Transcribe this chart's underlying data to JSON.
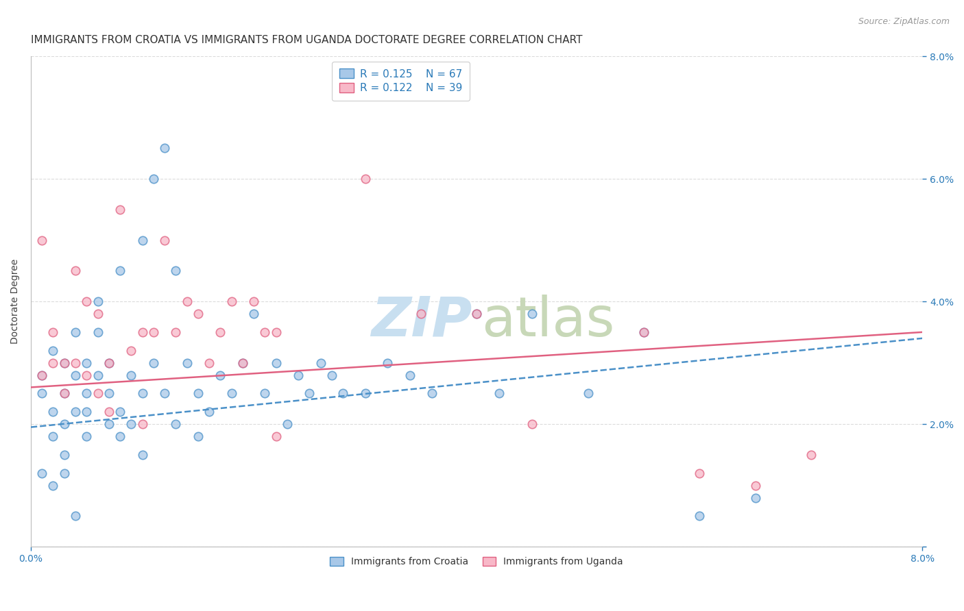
{
  "title": "IMMIGRANTS FROM CROATIA VS IMMIGRANTS FROM UGANDA DOCTORATE DEGREE CORRELATION CHART",
  "source": "Source: ZipAtlas.com",
  "ylabel": "Doctorate Degree",
  "xlim": [
    0.0,
    0.08
  ],
  "ylim": [
    0.0,
    0.08
  ],
  "croatia_color": "#a8c8e8",
  "croatia_edge_color": "#4a90c8",
  "uganda_color": "#f8b8c8",
  "uganda_edge_color": "#e06080",
  "croatia_R": 0.125,
  "croatia_N": 67,
  "uganda_R": 0.122,
  "uganda_N": 39,
  "legend_text_color": "#2a7ab8",
  "legend_N_color": "#d04000",
  "grid_color": "#d8d8d8",
  "title_fontsize": 11,
  "axis_label_fontsize": 10,
  "tick_fontsize": 10,
  "marker_size": 80,
  "bg_color": "#ffffff",
  "croatia_scatter_x": [
    0.001,
    0.001,
    0.002,
    0.002,
    0.002,
    0.003,
    0.003,
    0.003,
    0.003,
    0.004,
    0.004,
    0.004,
    0.005,
    0.005,
    0.005,
    0.005,
    0.006,
    0.006,
    0.006,
    0.007,
    0.007,
    0.007,
    0.008,
    0.008,
    0.008,
    0.009,
    0.009,
    0.01,
    0.01,
    0.01,
    0.011,
    0.011,
    0.012,
    0.012,
    0.013,
    0.013,
    0.014,
    0.015,
    0.015,
    0.016,
    0.017,
    0.018,
    0.019,
    0.02,
    0.021,
    0.022,
    0.023,
    0.024,
    0.025,
    0.026,
    0.027,
    0.028,
    0.03,
    0.032,
    0.034,
    0.036,
    0.04,
    0.042,
    0.045,
    0.05,
    0.055,
    0.06,
    0.065,
    0.001,
    0.002,
    0.003,
    0.004
  ],
  "croatia_scatter_y": [
    0.025,
    0.028,
    0.032,
    0.022,
    0.018,
    0.03,
    0.025,
    0.02,
    0.015,
    0.028,
    0.022,
    0.035,
    0.03,
    0.025,
    0.018,
    0.022,
    0.04,
    0.035,
    0.028,
    0.03,
    0.025,
    0.02,
    0.045,
    0.022,
    0.018,
    0.028,
    0.02,
    0.05,
    0.025,
    0.015,
    0.06,
    0.03,
    0.065,
    0.025,
    0.045,
    0.02,
    0.03,
    0.025,
    0.018,
    0.022,
    0.028,
    0.025,
    0.03,
    0.038,
    0.025,
    0.03,
    0.02,
    0.028,
    0.025,
    0.03,
    0.028,
    0.025,
    0.025,
    0.03,
    0.028,
    0.025,
    0.038,
    0.025,
    0.038,
    0.025,
    0.035,
    0.005,
    0.008,
    0.012,
    0.01,
    0.012,
    0.005
  ],
  "uganda_scatter_x": [
    0.001,
    0.001,
    0.002,
    0.002,
    0.003,
    0.003,
    0.004,
    0.004,
    0.005,
    0.005,
    0.006,
    0.006,
    0.007,
    0.007,
    0.008,
    0.009,
    0.01,
    0.011,
    0.012,
    0.013,
    0.014,
    0.015,
    0.016,
    0.017,
    0.018,
    0.019,
    0.02,
    0.021,
    0.022,
    0.03,
    0.035,
    0.04,
    0.045,
    0.055,
    0.06,
    0.065,
    0.07,
    0.022,
    0.01
  ],
  "uganda_scatter_y": [
    0.028,
    0.05,
    0.03,
    0.035,
    0.025,
    0.03,
    0.045,
    0.03,
    0.04,
    0.028,
    0.025,
    0.038,
    0.03,
    0.022,
    0.055,
    0.032,
    0.035,
    0.035,
    0.05,
    0.035,
    0.04,
    0.038,
    0.03,
    0.035,
    0.04,
    0.03,
    0.04,
    0.035,
    0.035,
    0.06,
    0.038,
    0.038,
    0.02,
    0.035,
    0.012,
    0.01,
    0.015,
    0.018,
    0.02
  ],
  "croatia_line_x": [
    0.0,
    0.08
  ],
  "croatia_line_y": [
    0.0195,
    0.034
  ],
  "uganda_line_x": [
    0.0,
    0.08
  ],
  "uganda_line_y": [
    0.026,
    0.035
  ]
}
